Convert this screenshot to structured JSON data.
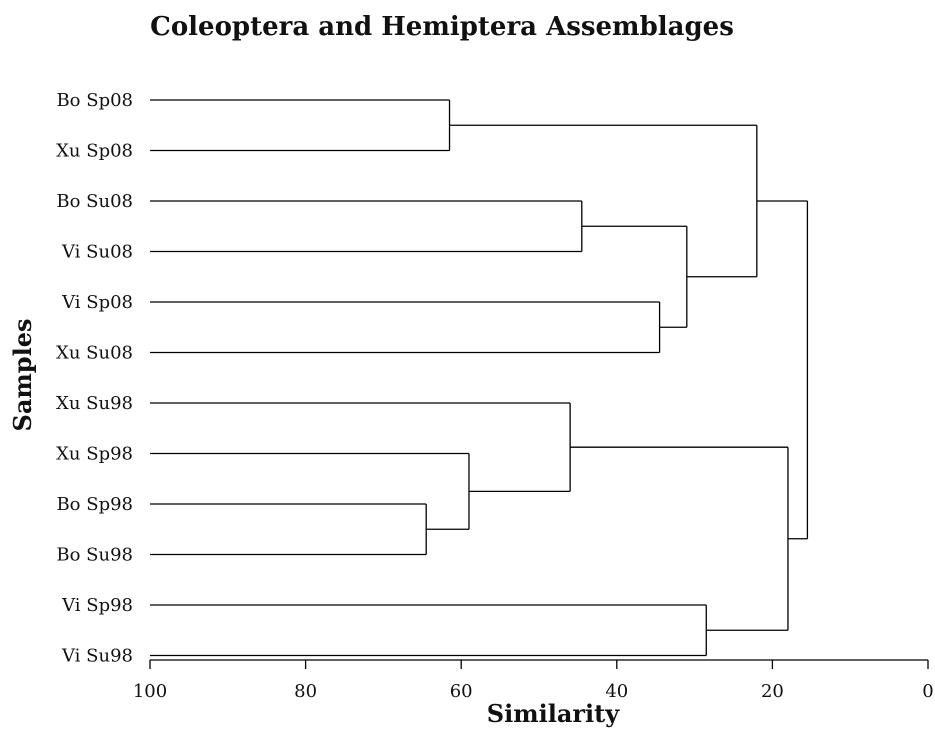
{
  "chart_data": {
    "type": "dendrogram",
    "title": "Coleoptera and Hemiptera Assemblages",
    "xlabel": "Similarity",
    "ylabel": "Samples",
    "xlim": [
      100,
      0
    ],
    "xticks": [
      100,
      80,
      60,
      40,
      20,
      0
    ],
    "leaves": [
      "Bo Sp08",
      "Xu Sp08",
      "Bo Su08",
      "Vi Su08",
      "Vi Sp08",
      "Xu Su08",
      "Xu Su98",
      "Xu Sp98",
      "Bo Sp98",
      "Bo Su98",
      "Vi Sp98",
      "Vi Su98"
    ],
    "merges": [
      {
        "id": "c1",
        "children": [
          "Bo Sp08",
          "Xu Sp08"
        ],
        "similarity": 61.5
      },
      {
        "id": "c2",
        "children": [
          "Bo Su08",
          "Vi Su08"
        ],
        "similarity": 44.5
      },
      {
        "id": "c3",
        "children": [
          "Vi Sp08",
          "Xu Su08"
        ],
        "similarity": 34.5
      },
      {
        "id": "c4",
        "children": [
          "c2",
          "c3"
        ],
        "similarity": 31
      },
      {
        "id": "c5",
        "children": [
          "c1",
          "c4"
        ],
        "similarity": 22
      },
      {
        "id": "c6",
        "children": [
          "Bo Sp98",
          "Bo Su98"
        ],
        "similarity": 64.5
      },
      {
        "id": "c7",
        "children": [
          "Xu Sp98",
          "c6"
        ],
        "similarity": 59
      },
      {
        "id": "c8",
        "children": [
          "Xu Su98",
          "c7"
        ],
        "similarity": 46
      },
      {
        "id": "c9",
        "children": [
          "Vi Sp98",
          "Vi Su98"
        ],
        "similarity": 28.5
      },
      {
        "id": "c10",
        "children": [
          "c8",
          "c9"
        ],
        "similarity": 18
      },
      {
        "id": "c11",
        "children": [
          "c5",
          "c10"
        ],
        "similarity": 15.5
      }
    ]
  }
}
